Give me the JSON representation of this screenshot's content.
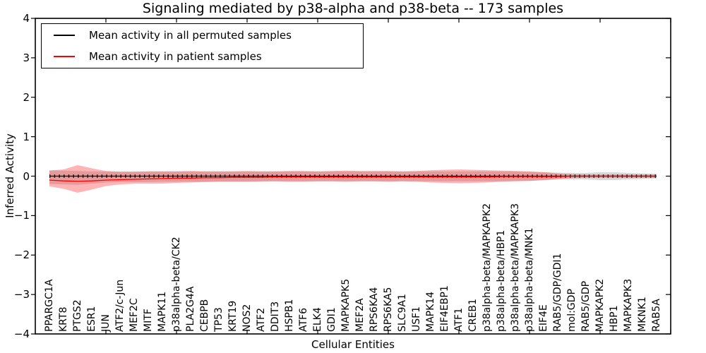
{
  "chart_data": {
    "type": "line",
    "title": "Signaling mediated by p38-alpha and p38-beta -- 173 samples",
    "xlabel": "Cellular Entities",
    "ylabel": "Inferred Activity",
    "ylim": [
      -4,
      4
    ],
    "ytick_values": [
      4,
      3,
      2,
      1,
      0,
      -1,
      -2,
      -3,
      -4
    ],
    "ytick_labels": [
      "4",
      "3",
      "2",
      "1",
      "0",
      "−1",
      "−2",
      "−3",
      "−4"
    ],
    "grid": false,
    "legend_position": "upper left",
    "categories": [
      "PPARGC1A",
      "KRT8",
      "PTGS2",
      "ESR1",
      "JUN",
      "ATF2/c-Jun",
      "MEF2C",
      "MITF",
      "MAPK11",
      "p38alpha-beta/CK2",
      "PLA2G4A",
      "CEBPB",
      "TP53",
      "KRT19",
      "NOS2",
      "ATF2",
      "DDIT3",
      "HSPB1",
      "ATF6",
      "ELK4",
      "GDI1",
      "MAPKAPK5",
      "MEF2A",
      "RPS6KA4",
      "RPS6KA5",
      "SLC9A1",
      "USF1",
      "MAPK14",
      "EIF4EBP1",
      "ATF1",
      "CREB1",
      "p38alpha-beta/MAPKAPK2",
      "p38alpha-beta/HBP1",
      "p38alpha-beta/MAPKAPK3",
      "p38alpha-beta/MNK1",
      "EIF4E",
      "RAB5/GDP/GDI1",
      "mol:GDP",
      "RAB5/GDP",
      "MAPKAPK2",
      "HBP1",
      "MAPKAPK3",
      "MKNK1",
      "RAB5A"
    ],
    "series": [
      {
        "name": "Mean activity in all permuted samples",
        "color": "#000000",
        "marker_dashes": true,
        "values": [
          0,
          0,
          0,
          0,
          0,
          0,
          0,
          0,
          0,
          0,
          0,
          0,
          0,
          0,
          0,
          0,
          0,
          0,
          0,
          0,
          0,
          0,
          0,
          0,
          0,
          0,
          0,
          0,
          0,
          0,
          0,
          0,
          0,
          0,
          0,
          0,
          0,
          0,
          0,
          0,
          0,
          0,
          0,
          0
        ]
      },
      {
        "name": "Mean activity in patient samples",
        "color": "#ff0000",
        "marker_dashes": false,
        "values": [
          -0.1,
          -0.12,
          -0.13,
          -0.12,
          -0.1,
          -0.09,
          -0.08,
          -0.07,
          -0.06,
          -0.05,
          -0.05,
          -0.04,
          -0.04,
          -0.03,
          -0.03,
          -0.03,
          -0.02,
          -0.02,
          -0.02,
          -0.02,
          -0.02,
          -0.02,
          -0.02,
          -0.02,
          -0.02,
          -0.02,
          -0.02,
          -0.02,
          -0.02,
          -0.02,
          -0.02,
          -0.02,
          -0.01,
          -0.01,
          -0.01,
          -0.01,
          -0.01,
          0,
          0,
          0,
          0,
          0,
          0,
          0
        ]
      }
    ],
    "bands": [
      {
        "name": "permuted-samples-spread",
        "color": "#999999",
        "opacity": 0.38,
        "upper": [
          0.15,
          0.14,
          0.13,
          0.12,
          0.12,
          0.12,
          0.12,
          0.12,
          0.12,
          0.12,
          0.12,
          0.12,
          0.12,
          0.12,
          0.12,
          0.12,
          0.12,
          0.12,
          0.12,
          0.12,
          0.12,
          0.12,
          0.12,
          0.12,
          0.12,
          0.12,
          0.12,
          0.12,
          0.12,
          0.12,
          0.12,
          0.12,
          0.12,
          0.12,
          0.11,
          0.1,
          0.09,
          0.08,
          0.08,
          0.1,
          0.1,
          0.08,
          0.07,
          0.06
        ],
        "lower": [
          -0.2,
          -0.21,
          -0.22,
          -0.19,
          -0.16,
          -0.15,
          -0.15,
          -0.15,
          -0.14,
          -0.14,
          -0.14,
          -0.14,
          -0.14,
          -0.14,
          -0.14,
          -0.14,
          -0.13,
          -0.13,
          -0.13,
          -0.13,
          -0.13,
          -0.13,
          -0.13,
          -0.13,
          -0.13,
          -0.13,
          -0.13,
          -0.13,
          -0.13,
          -0.13,
          -0.13,
          -0.13,
          -0.13,
          -0.12,
          -0.12,
          -0.1,
          -0.09,
          -0.08,
          -0.08,
          -0.1,
          -0.1,
          -0.08,
          -0.07,
          -0.06
        ]
      },
      {
        "name": "patient-samples-spread",
        "color": "#ff2a2a",
        "opacity": 0.35,
        "upper": [
          0.14,
          0.17,
          0.28,
          0.2,
          0.13,
          0.11,
          0.11,
          0.12,
          0.12,
          0.12,
          0.13,
          0.12,
          0.12,
          0.12,
          0.13,
          0.12,
          0.12,
          0.13,
          0.13,
          0.12,
          0.13,
          0.14,
          0.13,
          0.13,
          0.13,
          0.12,
          0.13,
          0.15,
          0.16,
          0.17,
          0.16,
          0.15,
          0.14,
          0.13,
          0.12,
          0.1,
          0.07,
          0.05,
          0.04,
          0.04,
          0.04,
          0.04,
          0.04,
          0.04
        ],
        "lower": [
          -0.26,
          -0.32,
          -0.42,
          -0.34,
          -0.25,
          -0.21,
          -0.19,
          -0.19,
          -0.19,
          -0.17,
          -0.16,
          -0.15,
          -0.14,
          -0.14,
          -0.14,
          -0.13,
          -0.13,
          -0.14,
          -0.14,
          -0.13,
          -0.13,
          -0.14,
          -0.13,
          -0.13,
          -0.14,
          -0.13,
          -0.14,
          -0.16,
          -0.17,
          -0.18,
          -0.17,
          -0.16,
          -0.14,
          -0.13,
          -0.12,
          -0.1,
          -0.07,
          -0.05,
          -0.04,
          -0.04,
          -0.04,
          -0.04,
          -0.04,
          -0.04
        ]
      }
    ]
  }
}
